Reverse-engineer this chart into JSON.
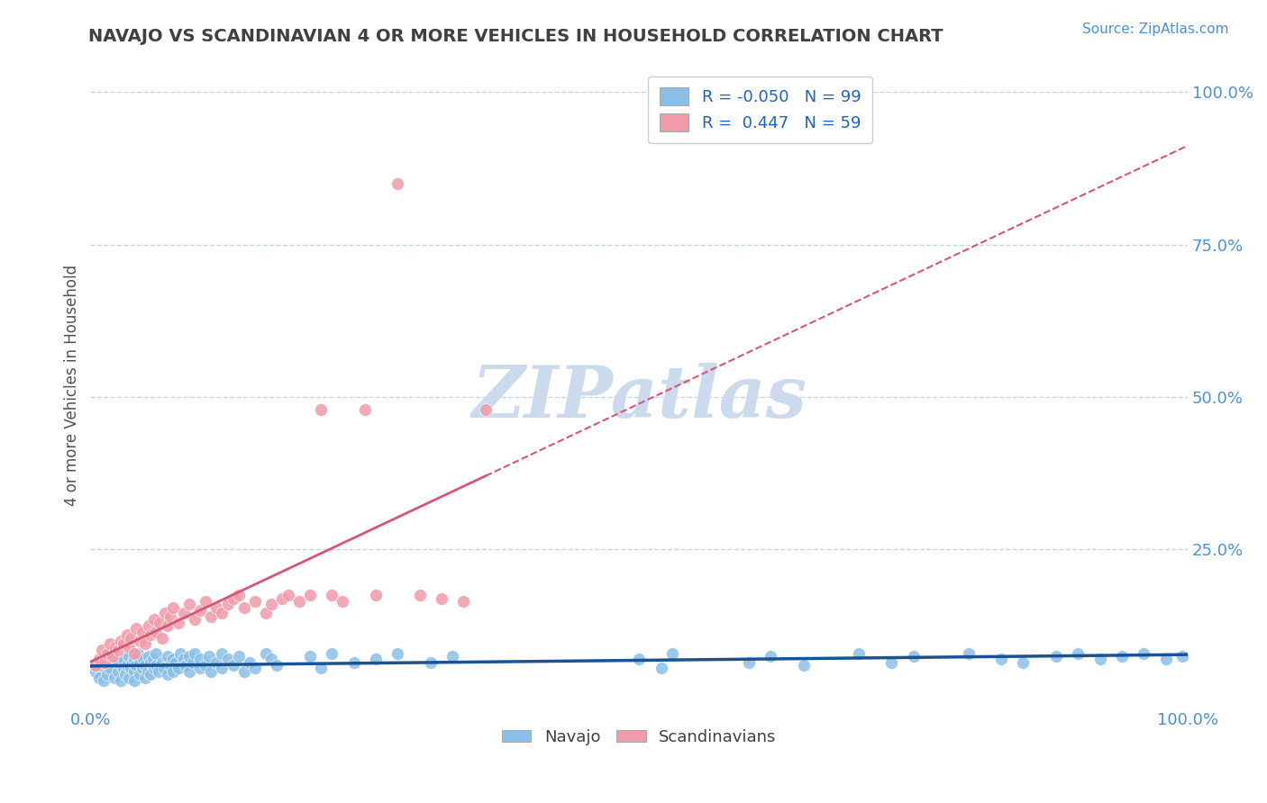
{
  "title": "NAVAJO VS SCANDINAVIAN 4 OR MORE VEHICLES IN HOUSEHOLD CORRELATION CHART",
  "source_text": "Source: ZipAtlas.com",
  "ylabel": "4 or more Vehicles in Household",
  "xlim": [
    0.0,
    1.0
  ],
  "ylim": [
    -0.01,
    1.05
  ],
  "navajo_R": -0.05,
  "navajo_N": 99,
  "scand_R": 0.447,
  "scand_N": 59,
  "navajo_color": "#8bbfe8",
  "scand_color": "#f09aaa",
  "navajo_line_color": "#1a5296",
  "scand_line_color": "#d95575",
  "legend_text_color": "#2060c0",
  "title_color": "#404040",
  "right_tick_color": "#5090d0",
  "bottom_tick_color": "#5090d0",
  "watermark_color": "#ccdaee",
  "grid_color": "#c5d5e5",
  "background_color": "#ffffff",
  "navajo_x": [
    0.005,
    0.008,
    0.01,
    0.012,
    0.015,
    0.018,
    0.02,
    0.022,
    0.025,
    0.025,
    0.028,
    0.03,
    0.03,
    0.032,
    0.033,
    0.035,
    0.035,
    0.037,
    0.038,
    0.04,
    0.04,
    0.04,
    0.042,
    0.043,
    0.045,
    0.045,
    0.047,
    0.048,
    0.05,
    0.05,
    0.052,
    0.053,
    0.055,
    0.055,
    0.057,
    0.058,
    0.06,
    0.06,
    0.062,
    0.065,
    0.067,
    0.07,
    0.07,
    0.073,
    0.075,
    0.075,
    0.078,
    0.08,
    0.082,
    0.085,
    0.087,
    0.09,
    0.09,
    0.093,
    0.095,
    0.1,
    0.1,
    0.105,
    0.108,
    0.11,
    0.115,
    0.12,
    0.12,
    0.125,
    0.13,
    0.135,
    0.14,
    0.145,
    0.15,
    0.16,
    0.165,
    0.17,
    0.2,
    0.21,
    0.22,
    0.24,
    0.26,
    0.28,
    0.31,
    0.33,
    0.5,
    0.52,
    0.53,
    0.6,
    0.62,
    0.65,
    0.7,
    0.73,
    0.75,
    0.8,
    0.83,
    0.85,
    0.88,
    0.9,
    0.92,
    0.94,
    0.96,
    0.98,
    0.995
  ],
  "navajo_y": [
    0.05,
    0.04,
    0.06,
    0.035,
    0.045,
    0.055,
    0.07,
    0.04,
    0.05,
    0.065,
    0.035,
    0.055,
    0.07,
    0.045,
    0.06,
    0.04,
    0.075,
    0.055,
    0.065,
    0.05,
    0.07,
    0.035,
    0.06,
    0.08,
    0.045,
    0.065,
    0.055,
    0.07,
    0.04,
    0.06,
    0.05,
    0.075,
    0.065,
    0.045,
    0.07,
    0.055,
    0.06,
    0.08,
    0.05,
    0.065,
    0.055,
    0.075,
    0.045,
    0.06,
    0.07,
    0.05,
    0.065,
    0.055,
    0.08,
    0.07,
    0.06,
    0.075,
    0.05,
    0.065,
    0.08,
    0.055,
    0.07,
    0.06,
    0.075,
    0.05,
    0.065,
    0.055,
    0.08,
    0.07,
    0.06,
    0.075,
    0.05,
    0.065,
    0.055,
    0.08,
    0.07,
    0.06,
    0.075,
    0.055,
    0.08,
    0.065,
    0.07,
    0.08,
    0.065,
    0.075,
    0.07,
    0.055,
    0.08,
    0.065,
    0.075,
    0.06,
    0.08,
    0.065,
    0.075,
    0.08,
    0.07,
    0.065,
    0.075,
    0.08,
    0.07,
    0.075,
    0.08,
    0.07,
    0.075
  ],
  "scand_x": [
    0.005,
    0.008,
    0.01,
    0.013,
    0.015,
    0.018,
    0.02,
    0.023,
    0.025,
    0.028,
    0.03,
    0.033,
    0.035,
    0.037,
    0.04,
    0.042,
    0.045,
    0.047,
    0.05,
    0.053,
    0.055,
    0.058,
    0.06,
    0.063,
    0.065,
    0.068,
    0.07,
    0.073,
    0.075,
    0.08,
    0.085,
    0.09,
    0.095,
    0.1,
    0.105,
    0.11,
    0.115,
    0.12,
    0.125,
    0.13,
    0.135,
    0.14,
    0.15,
    0.16,
    0.165,
    0.175,
    0.18,
    0.19,
    0.2,
    0.21,
    0.22,
    0.23,
    0.25,
    0.26,
    0.28,
    0.3,
    0.32,
    0.34,
    0.36
  ],
  "scand_y": [
    0.06,
    0.07,
    0.085,
    0.065,
    0.08,
    0.095,
    0.075,
    0.09,
    0.085,
    0.1,
    0.095,
    0.11,
    0.09,
    0.105,
    0.08,
    0.12,
    0.1,
    0.115,
    0.095,
    0.125,
    0.11,
    0.135,
    0.115,
    0.13,
    0.105,
    0.145,
    0.125,
    0.14,
    0.155,
    0.13,
    0.145,
    0.16,
    0.135,
    0.15,
    0.165,
    0.14,
    0.155,
    0.145,
    0.16,
    0.17,
    0.175,
    0.155,
    0.165,
    0.145,
    0.16,
    0.17,
    0.175,
    0.165,
    0.175,
    0.48,
    0.175,
    0.165,
    0.48,
    0.175,
    0.85,
    0.175,
    0.17,
    0.165,
    0.48
  ]
}
